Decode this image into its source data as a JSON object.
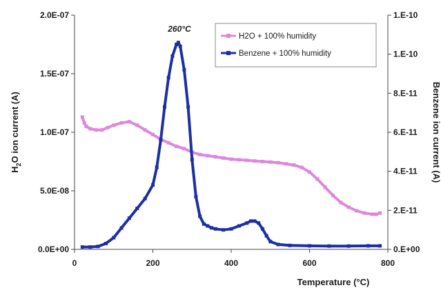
{
  "chart_data": {
    "type": "line",
    "annotation": "260°C",
    "xlabel": "Temperature (°C)",
    "ylabel_left_parts": [
      "H",
      "2",
      "O ion current (A)"
    ],
    "ylabel_right": "Benzene ion current (A)",
    "xlim": [
      0,
      800
    ],
    "ylim_left": [
      0,
      2e-07
    ],
    "ylim_right": [
      0,
      1.2e-10
    ],
    "x_ticks": [
      "0",
      "200",
      "400",
      "600",
      "800"
    ],
    "y_left_ticks": [
      {
        "value": 0,
        "label": "0.0E+00"
      },
      {
        "value": 5e-08,
        "label": "5.0E-08"
      },
      {
        "value": 1e-07,
        "label": "1.0E-07"
      },
      {
        "value": 1.5e-07,
        "label": "1.5E-07"
      },
      {
        "value": 2e-07,
        "label": "2.0E-07"
      }
    ],
    "y_right_ticks": [
      {
        "value": 0,
        "label": "0.E+00"
      },
      {
        "value": 2e-11,
        "label": "2.E-11"
      },
      {
        "value": 4e-11,
        "label": "4.E-11"
      },
      {
        "value": 6e-11,
        "label": "6.E-11"
      },
      {
        "value": 8e-11,
        "label": "8.E-11"
      },
      {
        "value": 1e-10,
        "label": "1.E-10"
      },
      {
        "value": 1.2e-10,
        "label": "1.E-10"
      }
    ],
    "grid": false,
    "legend_position": "top-right",
    "series": [
      {
        "name": "H2O + 100% humidity",
        "axis": "left",
        "color": "#dd88dd",
        "x": [
          20,
          25,
          30,
          40,
          55,
          70,
          85,
          100,
          120,
          140,
          160,
          180,
          200,
          220,
          240,
          260,
          280,
          300,
          320,
          340,
          360,
          380,
          400,
          420,
          440,
          460,
          480,
          500,
          520,
          540,
          560,
          580,
          600,
          620,
          640,
          660,
          680,
          700,
          720,
          740,
          760,
          770,
          780
        ],
        "y": [
          1.13e-07,
          1.08e-07,
          1.05e-07,
          1.03e-07,
          1.02e-07,
          1.02e-07,
          1.04e-07,
          1.06e-07,
          1.08e-07,
          1.09e-07,
          1.06e-07,
          1.02e-07,
          9.8e-08,
          9.4e-08,
          9.1e-08,
          8.8e-08,
          8.6e-08,
          8.3e-08,
          8.1e-08,
          8e-08,
          7.9e-08,
          7.8e-08,
          7.7e-08,
          7.65e-08,
          7.6e-08,
          7.55e-08,
          7.5e-08,
          7.45e-08,
          7.4e-08,
          7.3e-08,
          7.2e-08,
          7e-08,
          6.6e-08,
          6e-08,
          5.3e-08,
          4.6e-08,
          4e-08,
          3.6e-08,
          3.3e-08,
          3.1e-08,
          3e-08,
          3e-08,
          3.1e-08
        ]
      },
      {
        "name": "Benzene + 100% humidity",
        "axis": "right",
        "color": "#1c2fa3",
        "x": [
          20,
          40,
          60,
          80,
          100,
          120,
          140,
          160,
          180,
          200,
          210,
          220,
          230,
          240,
          250,
          260,
          265,
          270,
          280,
          290,
          300,
          310,
          320,
          330,
          340,
          350,
          360,
          380,
          400,
          420,
          440,
          450,
          460,
          470,
          480,
          490,
          500,
          520,
          550,
          600,
          650,
          700,
          750,
          780
        ],
        "y": [
          1.2e-12,
          1.2e-12,
          1.5e-12,
          3e-12,
          6e-12,
          1.1e-11,
          1.6e-11,
          2.1e-11,
          2.6e-11,
          3.3e-11,
          4.2e-11,
          5.6e-11,
          7.3e-11,
          8.8e-11,
          9.9e-11,
          1.05e-10,
          1.06e-10,
          1.04e-10,
          9.2e-11,
          7.3e-11,
          4.6e-11,
          2.7e-11,
          1.7e-11,
          1.3e-11,
          1.2e-11,
          1.1e-11,
          1.05e-11,
          1e-11,
          1.05e-11,
          1.2e-11,
          1.35e-11,
          1.45e-11,
          1.45e-11,
          1.35e-11,
          1.05e-11,
          7e-12,
          4e-12,
          2.5e-12,
          2e-12,
          1.8e-12,
          1.7e-12,
          1.7e-12,
          1.8e-12,
          1.8e-12
        ]
      }
    ]
  }
}
